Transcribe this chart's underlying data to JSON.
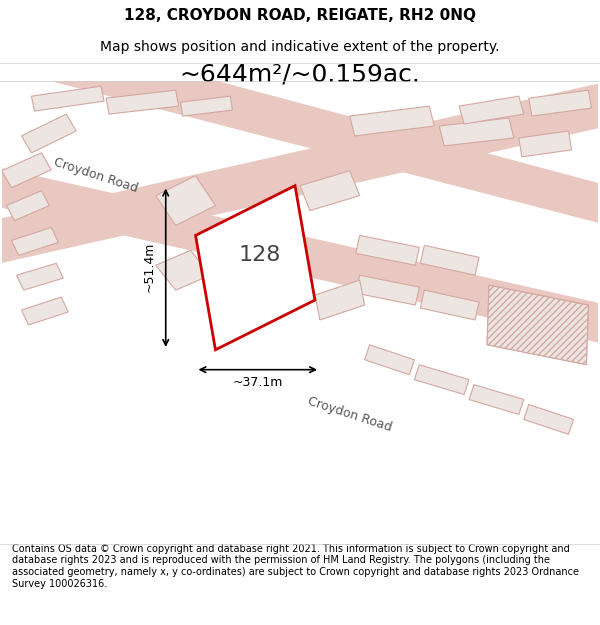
{
  "title_line1": "128, CROYDON ROAD, REIGATE, RH2 0NQ",
  "title_line2": "Map shows position and indicative extent of the property.",
  "area_text": "~644m²/~0.159ac.",
  "label_128": "128",
  "dim_width": "~37.1m",
  "dim_height": "~51.4m",
  "footer_text": "Contains OS data © Crown copyright and database right 2021. This information is subject to Crown copyright and database rights 2023 and is reproduced with the permission of HM Land Registry. The polygons (including the associated geometry, namely x, y co-ordinates) are subject to Crown copyright and database rights 2023 Ordnance Survey 100026316.",
  "bg_color": "#f5f0ee",
  "map_bg": "#f0ebe8",
  "road_color": "#e8c8c0",
  "highlight_color": "#cc0000",
  "building_fill": "#f0e8e5",
  "building_edge": "#e8b0a8",
  "street_label1": "Croydon Road",
  "street_label2": "Croydon Road"
}
